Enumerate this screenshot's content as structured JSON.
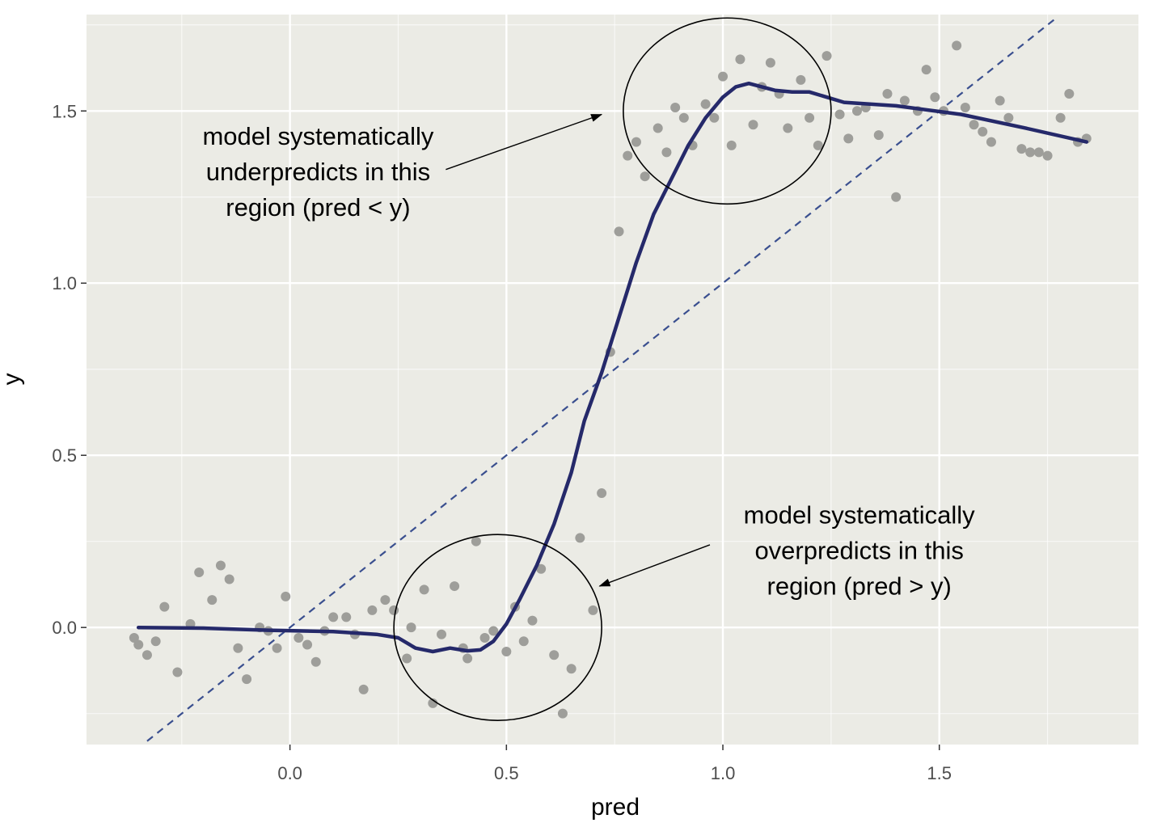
{
  "chart_data": {
    "type": "scatter",
    "xlabel": "pred",
    "ylabel": "y",
    "xlim": [
      -0.47,
      1.96
    ],
    "ylim": [
      -0.34,
      1.78
    ],
    "x_ticks": [
      0.0,
      0.5,
      1.0,
      1.5
    ],
    "x_tick_labels": [
      "0.0",
      "0.5",
      "1.0",
      "1.5"
    ],
    "y_ticks": [
      0.0,
      0.5,
      1.0,
      1.5
    ],
    "y_tick_labels": [
      "0.0",
      "0.5",
      "1.0",
      "1.5"
    ],
    "grid": true,
    "colors": {
      "panel_bg": "#ebebe5",
      "grid_major": "#ffffff",
      "points": "#9e9e9a",
      "smooth_line": "#25296a",
      "reference_line": "#3a4f8f",
      "annotation": "#000000"
    },
    "points": [
      [
        -0.36,
        -0.03
      ],
      [
        -0.35,
        -0.05
      ],
      [
        -0.33,
        -0.08
      ],
      [
        -0.31,
        -0.04
      ],
      [
        -0.29,
        0.06
      ],
      [
        -0.26,
        -0.13
      ],
      [
        -0.23,
        0.01
      ],
      [
        -0.21,
        0.16
      ],
      [
        -0.18,
        0.08
      ],
      [
        -0.16,
        0.18
      ],
      [
        -0.14,
        0.14
      ],
      [
        -0.12,
        -0.06
      ],
      [
        -0.1,
        -0.15
      ],
      [
        -0.07,
        0.0
      ],
      [
        -0.05,
        -0.01
      ],
      [
        -0.03,
        -0.06
      ],
      [
        -0.01,
        0.09
      ],
      [
        0.02,
        -0.03
      ],
      [
        0.04,
        -0.05
      ],
      [
        0.06,
        -0.1
      ],
      [
        0.08,
        -0.01
      ],
      [
        0.1,
        0.03
      ],
      [
        0.13,
        0.03
      ],
      [
        0.15,
        -0.02
      ],
      [
        0.17,
        -0.18
      ],
      [
        0.19,
        0.05
      ],
      [
        0.22,
        0.08
      ],
      [
        0.24,
        0.05
      ],
      [
        0.27,
        -0.09
      ],
      [
        0.28,
        0.0
      ],
      [
        0.31,
        0.11
      ],
      [
        0.33,
        -0.22
      ],
      [
        0.35,
        -0.02
      ],
      [
        0.38,
        0.12
      ],
      [
        0.4,
        -0.06
      ],
      [
        0.41,
        -0.09
      ],
      [
        0.43,
        0.25
      ],
      [
        0.45,
        -0.03
      ],
      [
        0.47,
        -0.01
      ],
      [
        0.5,
        -0.07
      ],
      [
        0.52,
        0.06
      ],
      [
        0.54,
        -0.04
      ],
      [
        0.56,
        0.02
      ],
      [
        0.58,
        0.17
      ],
      [
        0.61,
        -0.08
      ],
      [
        0.63,
        -0.25
      ],
      [
        0.65,
        -0.12
      ],
      [
        0.67,
        0.26
      ],
      [
        0.7,
        0.05
      ],
      [
        0.72,
        0.39
      ],
      [
        0.74,
        0.8
      ],
      [
        0.76,
        1.15
      ],
      [
        0.78,
        1.37
      ],
      [
        0.8,
        1.41
      ],
      [
        0.82,
        1.31
      ],
      [
        0.85,
        1.45
      ],
      [
        0.87,
        1.38
      ],
      [
        0.89,
        1.51
      ],
      [
        0.91,
        1.48
      ],
      [
        0.93,
        1.4
      ],
      [
        0.96,
        1.52
      ],
      [
        0.98,
        1.48
      ],
      [
        1.0,
        1.6
      ],
      [
        1.02,
        1.4
      ],
      [
        1.04,
        1.65
      ],
      [
        1.07,
        1.46
      ],
      [
        1.09,
        1.57
      ],
      [
        1.11,
        1.64
      ],
      [
        1.13,
        1.55
      ],
      [
        1.15,
        1.45
      ],
      [
        1.18,
        1.59
      ],
      [
        1.2,
        1.48
      ],
      [
        1.22,
        1.4
      ],
      [
        1.24,
        1.66
      ],
      [
        1.27,
        1.49
      ],
      [
        1.29,
        1.42
      ],
      [
        1.31,
        1.5
      ],
      [
        1.33,
        1.51
      ],
      [
        1.36,
        1.43
      ],
      [
        1.38,
        1.55
      ],
      [
        1.4,
        1.25
      ],
      [
        1.42,
        1.53
      ],
      [
        1.45,
        1.5
      ],
      [
        1.47,
        1.62
      ],
      [
        1.49,
        1.54
      ],
      [
        1.51,
        1.5
      ],
      [
        1.54,
        1.69
      ],
      [
        1.56,
        1.51
      ],
      [
        1.58,
        1.46
      ],
      [
        1.6,
        1.44
      ],
      [
        1.62,
        1.41
      ],
      [
        1.64,
        1.53
      ],
      [
        1.66,
        1.48
      ],
      [
        1.69,
        1.39
      ],
      [
        1.71,
        1.38
      ],
      [
        1.73,
        1.38
      ],
      [
        1.75,
        1.37
      ],
      [
        1.78,
        1.48
      ],
      [
        1.8,
        1.55
      ],
      [
        1.82,
        1.41
      ],
      [
        1.84,
        1.42
      ]
    ],
    "smooth_line": [
      [
        -0.35,
        0.0
      ],
      [
        -0.2,
        -0.002
      ],
      [
        -0.05,
        -0.008
      ],
      [
        0.1,
        -0.012
      ],
      [
        0.2,
        -0.02
      ],
      [
        0.25,
        -0.03
      ],
      [
        0.29,
        -0.06
      ],
      [
        0.33,
        -0.07
      ],
      [
        0.37,
        -0.06
      ],
      [
        0.41,
        -0.068
      ],
      [
        0.44,
        -0.065
      ],
      [
        0.47,
        -0.04
      ],
      [
        0.5,
        0.01
      ],
      [
        0.53,
        0.08
      ],
      [
        0.57,
        0.18
      ],
      [
        0.61,
        0.3
      ],
      [
        0.65,
        0.45
      ],
      [
        0.68,
        0.6
      ],
      [
        0.72,
        0.74
      ],
      [
        0.76,
        0.9
      ],
      [
        0.8,
        1.06
      ],
      [
        0.84,
        1.2
      ],
      [
        0.88,
        1.3
      ],
      [
        0.92,
        1.4
      ],
      [
        0.96,
        1.48
      ],
      [
        1.0,
        1.54
      ],
      [
        1.03,
        1.57
      ],
      [
        1.06,
        1.58
      ],
      [
        1.09,
        1.57
      ],
      [
        1.12,
        1.56
      ],
      [
        1.16,
        1.555
      ],
      [
        1.2,
        1.555
      ],
      [
        1.24,
        1.54
      ],
      [
        1.28,
        1.525
      ],
      [
        1.4,
        1.515
      ],
      [
        1.55,
        1.49
      ],
      [
        1.7,
        1.45
      ],
      [
        1.84,
        1.41
      ]
    ],
    "reference_line": [
      [
        -0.33,
        -0.33
      ],
      [
        1.77,
        1.77
      ]
    ],
    "annotations": [
      {
        "lines": [
          "model systematically",
          "underpredicts in this",
          "region (pred < y)"
        ],
        "text_x": 0.065,
        "text_y": 1.325,
        "arrow_from": [
          0.36,
          1.33
        ],
        "arrow_to": [
          0.72,
          1.49
        ],
        "ellipse_center": [
          1.01,
          1.5
        ],
        "ellipse_rx": 0.24,
        "ellipse_ry": 0.27
      },
      {
        "lines": [
          "model systematically",
          "overpredicts in this",
          "region (pred > y)"
        ],
        "text_x": 1.315,
        "text_y": 0.225,
        "arrow_from": [
          0.97,
          0.24
        ],
        "arrow_to": [
          0.715,
          0.12
        ],
        "ellipse_center": [
          0.48,
          0.0
        ],
        "ellipse_rx": 0.24,
        "ellipse_ry": 0.27
      }
    ]
  }
}
